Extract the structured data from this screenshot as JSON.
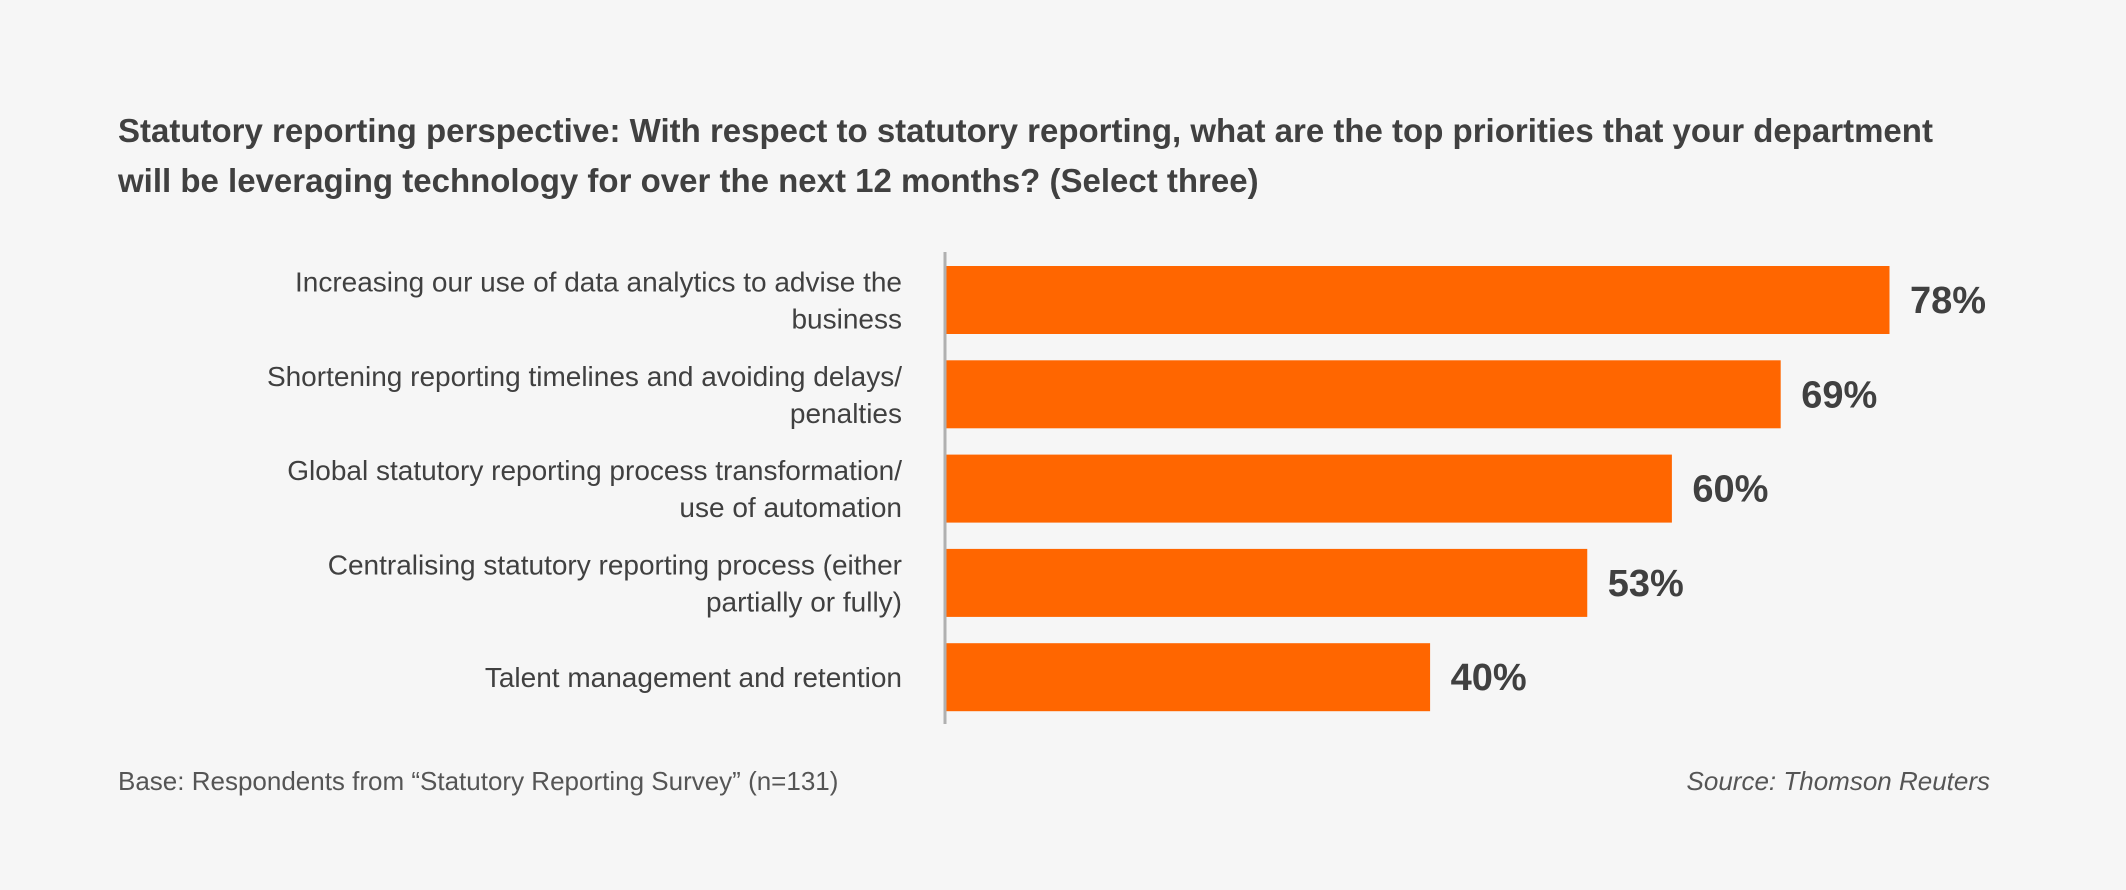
{
  "chart_data": {
    "type": "bar",
    "orientation": "horizontal",
    "title": "Statutory reporting perspective: With respect to statutory reporting, what are the top priorities that your department will be leveraging technology for over the next 12 months? (Select three)",
    "categories": [
      [
        "Increasing our use of data analytics to advise the",
        "business"
      ],
      [
        "Shortening reporting timelines and avoiding delays/",
        "penalties"
      ],
      [
        "Global statutory reporting process transformation/",
        "use of automation"
      ],
      [
        "Centralising statutory reporting process (either",
        "partially or fully)"
      ],
      [
        "Talent management and retention"
      ]
    ],
    "values": [
      78,
      69,
      60,
      53,
      40
    ],
    "value_labels": [
      "78%",
      "69%",
      "60%",
      "53%",
      "40%"
    ],
    "xlim": [
      0,
      100
    ],
    "grid": false,
    "bar_color": "#ff6600",
    "label_color": "#404040",
    "axis_color": "#b0b0b0"
  },
  "footnote": "Base: Respondents from “Statutory Reporting Survey” (n=131)",
  "source": "Source: Thomson Reuters"
}
